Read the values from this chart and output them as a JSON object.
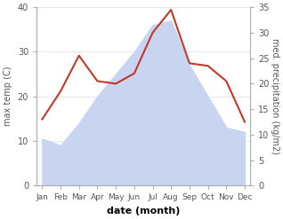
{
  "months": [
    "Jan",
    "Feb",
    "Mar",
    "Apr",
    "May",
    "Jun",
    "Jul",
    "Aug",
    "Sep",
    "Oct",
    "Nov",
    "Dec"
  ],
  "max_temp": [
    10.5,
    9.0,
    14.0,
    20.0,
    25.0,
    30.0,
    36.0,
    37.0,
    27.0,
    20.0,
    13.0,
    12.0
  ],
  "precipitation": [
    13.0,
    18.5,
    25.5,
    20.5,
    20.0,
    22.0,
    30.0,
    34.5,
    24.0,
    23.5,
    20.5,
    12.5
  ],
  "temp_fill_color": "#c8d4f0",
  "precip_color": "#c0392b",
  "temp_ylim": [
    0,
    40
  ],
  "precip_ylim": [
    0,
    35
  ],
  "xlabel": "date (month)",
  "ylabel_left": "max temp (C)",
  "ylabel_right": "med. precipitation (kg/m2)",
  "bg_color": "#ffffff",
  "spine_color": "#aaaaaa",
  "tick_color": "#555555"
}
